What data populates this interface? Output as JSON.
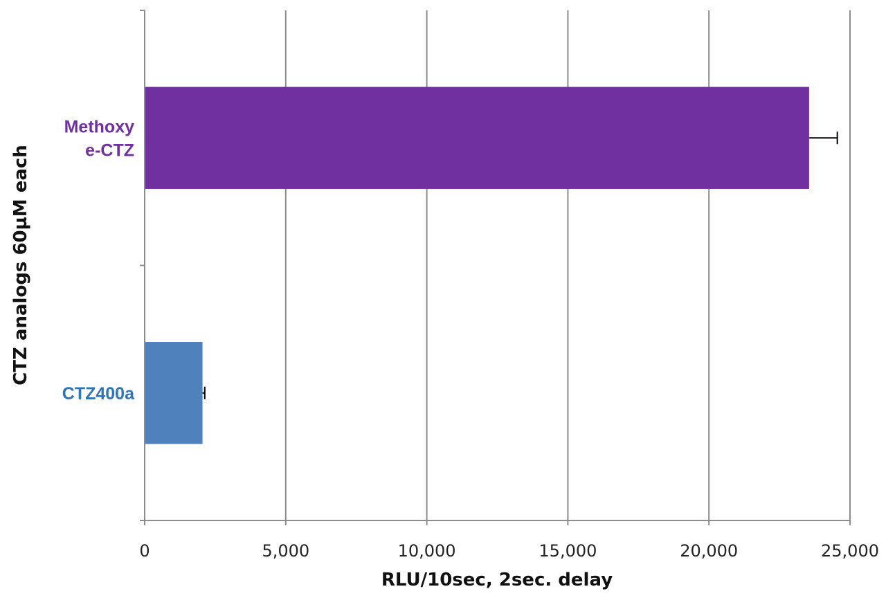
{
  "chart_data": {
    "type": "bar",
    "orientation": "horizontal",
    "categories": [
      "CTZ400a",
      "Methoxy e-CTZ"
    ],
    "category_label_lines": [
      [
        "CTZ400a"
      ],
      [
        "Methoxy",
        "e-CTZ"
      ]
    ],
    "values": [
      2050,
      23550
    ],
    "errors": [
      80,
      1000
    ],
    "bar_colors": [
      "#4f81bd",
      "#7030a0"
    ],
    "label_colors": [
      "#2e75b6",
      "#7030a0"
    ],
    "xlabel": "RLU/10sec, 2sec. delay",
    "ylabel": "CTZ analogs 60µM each",
    "xlim": [
      0,
      25000
    ],
    "xticks": [
      0,
      5000,
      10000,
      15000,
      20000,
      25000
    ],
    "xtick_labels": [
      "0",
      "5,000",
      "10,000",
      "15,000",
      "20,000",
      "25,000"
    ],
    "grid": "vertical",
    "legend": "none"
  }
}
